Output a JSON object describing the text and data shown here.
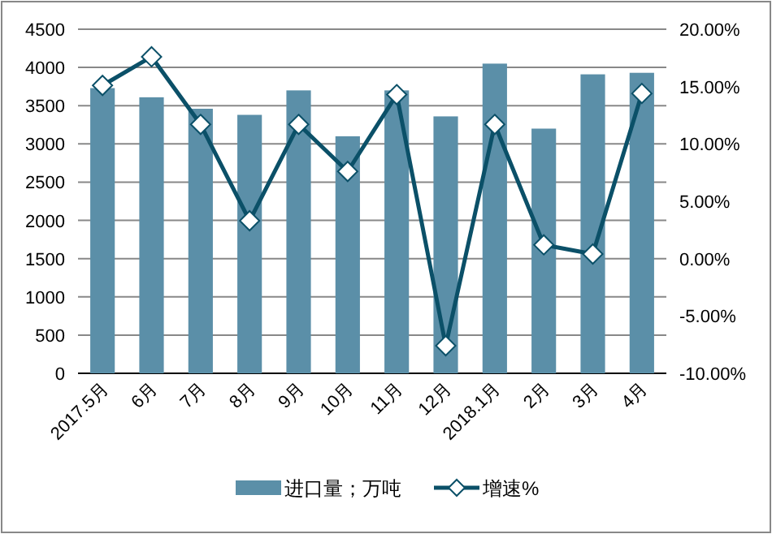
{
  "chart_data": {
    "type": "bar",
    "categories": [
      "2017.5月",
      "6月",
      "7月",
      "8月",
      "9月",
      "10月",
      "11月",
      "12月",
      "2018.1月",
      "2月",
      "3月",
      "4月"
    ],
    "series": [
      {
        "name": "进口量；万吨",
        "color": "#5b8fa8",
        "values": [
          3730,
          3610,
          3460,
          3380,
          3700,
          3100,
          3700,
          3360,
          4050,
          3200,
          3910,
          3930
        ]
      },
      {
        "name": "增速%",
        "type": "line",
        "axis": "y2",
        "color": "#0b5068",
        "marker": "diamond",
        "values": [
          15.1,
          17.6,
          11.7,
          3.3,
          11.7,
          7.6,
          14.3,
          -7.6,
          11.7,
          1.2,
          0.4,
          14.4
        ]
      }
    ],
    "ylim": [
      0,
      4500
    ],
    "yticks": [
      0,
      500,
      1000,
      1500,
      2000,
      2500,
      3000,
      3500,
      4000,
      4500
    ],
    "y2lim": [
      -10,
      20
    ],
    "y2ticks": [
      {
        "value": -10,
        "label": "-10.00%"
      },
      {
        "value": -5,
        "label": "-5.00%"
      },
      {
        "value": 0,
        "label": "0.00%"
      },
      {
        "value": 5,
        "label": "5.00%"
      },
      {
        "value": 10,
        "label": "10.00%"
      },
      {
        "value": 15,
        "label": "15.00%"
      },
      {
        "value": 20,
        "label": "20.00%"
      }
    ],
    "grid": "y",
    "legend": "bottom"
  }
}
